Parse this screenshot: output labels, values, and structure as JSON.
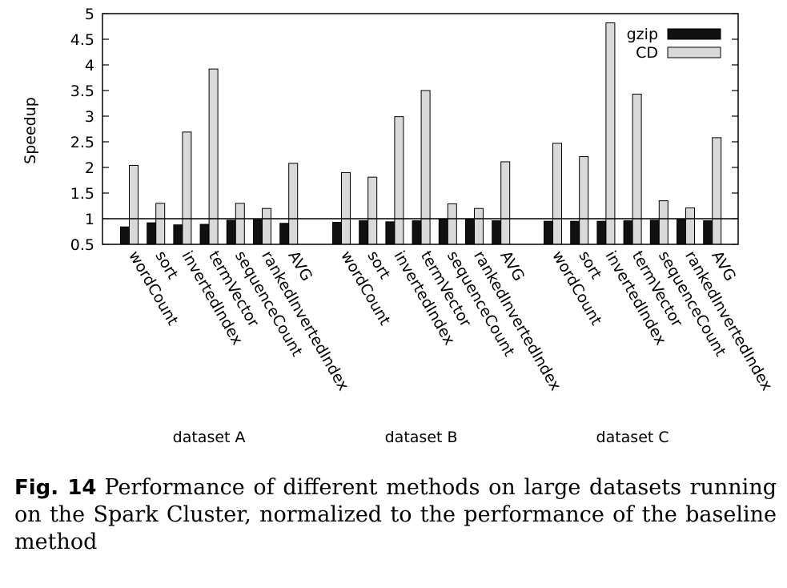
{
  "chart_data": {
    "type": "bar",
    "ylabel": "Speedup",
    "ylim": [
      0.5,
      5
    ],
    "yticks": [
      "0.5",
      "1",
      "1.5",
      "2",
      "2.5",
      "3",
      "3.5",
      "4",
      "4.5",
      "5"
    ],
    "reference_line": 1,
    "legend_position": "top-right",
    "groups": [
      {
        "label": "dataset A",
        "categories": [
          "wordCount",
          "sort",
          "invertedIndex",
          "termVector",
          "sequenceCount",
          "rankedInvertedIndex",
          "AVG"
        ],
        "series": [
          {
            "name": "gzip",
            "values": [
              0.84,
              0.92,
              0.88,
              0.89,
              0.97,
              0.98,
              0.91
            ]
          },
          {
            "name": "CD",
            "values": [
              2.04,
              1.3,
              2.69,
              3.92,
              1.3,
              1.2,
              2.08
            ]
          }
        ]
      },
      {
        "label": "dataset B",
        "categories": [
          "wordCount",
          "sort",
          "invertedIndex",
          "termVector",
          "sequenceCount",
          "rankedInvertedIndex",
          "AVG"
        ],
        "series": [
          {
            "name": "gzip",
            "values": [
              0.93,
              0.96,
              0.94,
              0.96,
              0.99,
              1.0,
              0.96
            ]
          },
          {
            "name": "CD",
            "values": [
              1.9,
              1.81,
              2.99,
              3.5,
              1.29,
              1.2,
              2.11
            ]
          }
        ]
      },
      {
        "label": "dataset C",
        "categories": [
          "wordCount",
          "sort",
          "invertedIndex",
          "termVector",
          "sequenceCount",
          "rankedInvertedIndex",
          "AVG"
        ],
        "series": [
          {
            "name": "gzip",
            "values": [
              0.95,
              0.95,
              0.95,
              0.96,
              0.97,
              0.98,
              0.96
            ]
          },
          {
            "name": "CD",
            "values": [
              2.47,
              2.21,
              4.82,
              3.43,
              1.35,
              1.21,
              2.58
            ]
          }
        ]
      }
    ],
    "colors": {
      "gzip": "#111111",
      "CD": "#d9d9d9"
    }
  },
  "caption": {
    "label": "Fig. 14",
    "text": "Performance of different methods on large datasets running on the Spark Cluster, normalized to the performance of the baseline method"
  }
}
